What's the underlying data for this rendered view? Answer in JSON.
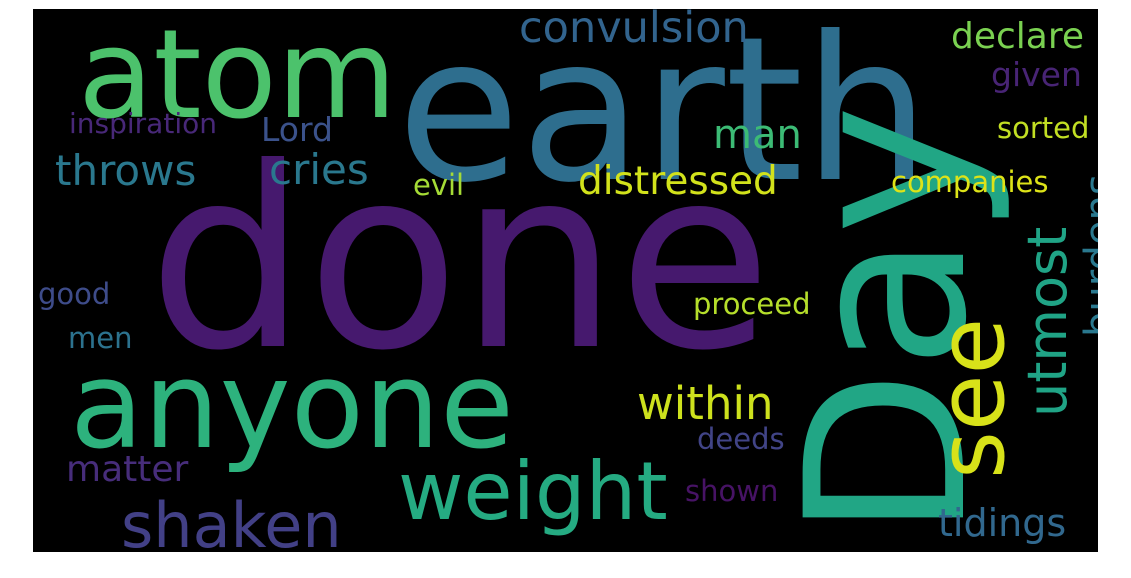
{
  "background": "#000000",
  "frame": "#ffffff",
  "words": [
    {
      "id": "done",
      "text": "done",
      "color": "#46196e",
      "rotated": false
    },
    {
      "id": "earth",
      "text": "earth",
      "color": "#2e6e8e",
      "rotated": false
    },
    {
      "id": "day",
      "text": "Day",
      "color": "#21a685",
      "rotated": true
    },
    {
      "id": "atom",
      "text": "atom",
      "color": "#4cc26c",
      "rotated": false
    },
    {
      "id": "anyone",
      "text": "anyone",
      "color": "#2db27d",
      "rotated": false
    },
    {
      "id": "weight",
      "text": "weight",
      "color": "#25ab82",
      "rotated": false
    },
    {
      "id": "shaken",
      "text": "shaken",
      "color": "#424086",
      "rotated": false
    },
    {
      "id": "see",
      "text": "see",
      "color": "#d8e219",
      "rotated": true
    },
    {
      "id": "utmost",
      "text": "utmost",
      "color": "#20a486",
      "rotated": true
    },
    {
      "id": "burdens",
      "text": "burdens",
      "color": "#2a788e",
      "rotated": true
    },
    {
      "id": "within",
      "text": "within",
      "color": "#cde11d",
      "rotated": false
    },
    {
      "id": "distressed",
      "text": "distressed",
      "color": "#d2e21b",
      "rotated": false
    },
    {
      "id": "convulsion",
      "text": "convulsion",
      "color": "#32648e",
      "rotated": false
    },
    {
      "id": "declare",
      "text": "declare",
      "color": "#7ad151",
      "rotated": false
    },
    {
      "id": "given",
      "text": "given",
      "color": "#482475",
      "rotated": false
    },
    {
      "id": "throws",
      "text": "throws",
      "color": "#2a788e",
      "rotated": false
    },
    {
      "id": "cries",
      "text": "cries",
      "color": "#2a788e",
      "rotated": false
    },
    {
      "id": "man",
      "text": "man",
      "color": "#3cbb75",
      "rotated": false
    },
    {
      "id": "lord",
      "text": "Lord",
      "color": "#3b528b",
      "rotated": false
    },
    {
      "id": "inspiration",
      "text": "inspiration",
      "color": "#482878",
      "rotated": false
    },
    {
      "id": "sorted",
      "text": "sorted",
      "color": "#c2df23",
      "rotated": false
    },
    {
      "id": "companies",
      "text": "companies",
      "color": "#dde318",
      "rotated": false
    },
    {
      "id": "evil",
      "text": "evil",
      "color": "#a5db36",
      "rotated": false
    },
    {
      "id": "good",
      "text": "good",
      "color": "#3e4c8a",
      "rotated": false
    },
    {
      "id": "proceed",
      "text": "proceed",
      "color": "#b5de2b",
      "rotated": false
    },
    {
      "id": "men",
      "text": "men",
      "color": "#2c728e",
      "rotated": false
    },
    {
      "id": "matter",
      "text": "matter",
      "color": "#472d7b",
      "rotated": false
    },
    {
      "id": "deeds",
      "text": "deeds",
      "color": "#414487",
      "rotated": false
    },
    {
      "id": "shown",
      "text": "shown",
      "color": "#471365",
      "rotated": false
    },
    {
      "id": "tidings",
      "text": "tidings",
      "color": "#31688e",
      "rotated": false
    }
  ]
}
